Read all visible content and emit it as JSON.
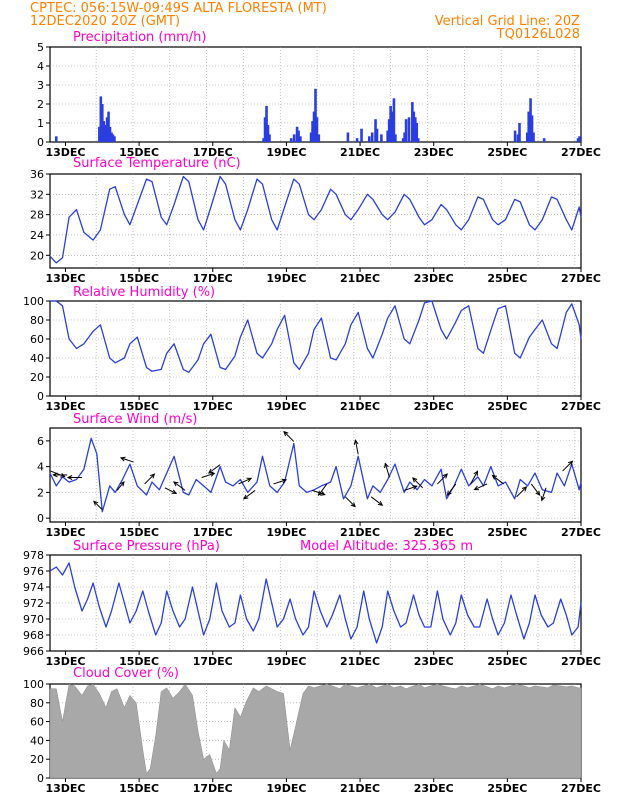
{
  "header": {
    "line1": "CPTEC:   056:15W-09:49S   ALTA FLORESTA (MT)",
    "date": "12DEC2020 20Z (GMT)",
    "grid_note": "Vertical Grid Line: 20Z",
    "code": "TQ0126L028"
  },
  "colors": {
    "header": "#ff8000",
    "title": "#ff00c8",
    "series": "#2b3fe0",
    "cloud": "#a8a8a8"
  },
  "chart_data": [
    {
      "type": "bar",
      "title": "Precipitation (mm/h)",
      "ylim": [
        0,
        5
      ],
      "yticks": [
        0,
        1,
        2,
        3,
        4,
        5
      ],
      "xticks": [
        "13DEC",
        "15DEC",
        "17DEC",
        "19DEC",
        "21DEC",
        "23DEC",
        "25DEC",
        "27DEC"
      ],
      "xrange_days": [
        12.58,
        27.0
      ],
      "x": [
        12.75,
        13.92,
        13.96,
        14.0,
        14.04,
        14.08,
        14.13,
        14.17,
        14.21,
        14.25,
        14.29,
        14.33,
        18.38,
        18.42,
        18.46,
        18.5,
        18.54,
        19.13,
        19.21,
        19.29,
        19.33,
        19.38,
        19.67,
        19.71,
        19.75,
        19.79,
        19.83,
        19.88,
        20.67,
        20.92,
        21.04,
        21.25,
        21.33,
        21.42,
        21.46,
        21.58,
        21.75,
        21.79,
        21.83,
        21.88,
        21.92,
        21.96,
        22.17,
        22.21,
        22.25,
        22.33,
        22.42,
        22.46,
        22.5,
        22.54,
        22.58,
        25.21,
        25.29,
        25.33,
        25.54,
        25.58,
        25.63,
        25.67,
        25.71,
        26.0,
        26.92,
        26.96
      ],
      "values": [
        0.3,
        0.8,
        2.4,
        2.0,
        1.1,
        0.9,
        1.3,
        1.6,
        0.8,
        0.5,
        0.4,
        0.3,
        0.2,
        1.3,
        1.9,
        0.9,
        0.4,
        0.2,
        0.4,
        0.8,
        0.6,
        0.3,
        0.5,
        1.1,
        1.6,
        2.8,
        1.3,
        0.4,
        0.5,
        0.2,
        0.7,
        0.3,
        0.5,
        1.2,
        0.7,
        0.4,
        0.6,
        1.2,
        1.9,
        1.6,
        2.3,
        0.4,
        0.2,
        0.5,
        1.2,
        1.3,
        2.1,
        1.6,
        1.3,
        1.0,
        0.2,
        0.6,
        0.4,
        1.0,
        0.5,
        1.6,
        2.3,
        1.4,
        0.5,
        0.2,
        0.2,
        0.3
      ]
    },
    {
      "type": "line",
      "title": "Surface Temperature (nC)",
      "ylim": [
        17.5,
        36
      ],
      "yticks": [
        20,
        24,
        28,
        32,
        36
      ],
      "xticks": [
        "13DEC",
        "15DEC",
        "17DEC",
        "19DEC",
        "21DEC",
        "23DEC",
        "25DEC",
        "27DEC"
      ],
      "xrange_days": [
        12.58,
        27.0
      ],
      "x": [
        12.58,
        12.75,
        12.92,
        13.1,
        13.3,
        13.5,
        13.75,
        13.95,
        14.2,
        14.35,
        14.6,
        14.75,
        14.95,
        15.2,
        15.35,
        15.6,
        15.75,
        15.95,
        16.2,
        16.35,
        16.6,
        16.75,
        16.95,
        17.2,
        17.35,
        17.6,
        17.75,
        17.95,
        18.2,
        18.35,
        18.6,
        18.75,
        18.95,
        19.2,
        19.35,
        19.6,
        19.75,
        19.95,
        20.2,
        20.35,
        20.6,
        20.75,
        20.95,
        21.2,
        21.35,
        21.6,
        21.75,
        21.95,
        22.2,
        22.35,
        22.6,
        22.75,
        22.95,
        23.2,
        23.35,
        23.6,
        23.75,
        23.95,
        24.2,
        24.35,
        24.6,
        24.75,
        24.95,
        25.2,
        25.35,
        25.6,
        25.75,
        25.95,
        26.2,
        26.35,
        26.6,
        26.75,
        26.95,
        27.0
      ],
      "values": [
        19.8,
        18.5,
        19.5,
        27.5,
        29,
        24.5,
        23,
        25,
        33,
        33.5,
        28,
        26,
        30,
        35,
        34.5,
        27.5,
        26,
        30,
        35.5,
        34.5,
        27,
        25,
        29.5,
        35.5,
        34,
        27,
        25,
        29,
        35,
        34,
        27,
        25,
        29.5,
        35,
        34,
        28,
        27,
        29,
        33,
        32,
        28,
        27,
        29,
        32,
        31,
        28,
        27,
        28.5,
        32,
        31,
        27.5,
        26,
        27,
        30,
        29,
        26,
        25,
        27,
        31.5,
        31,
        27,
        26,
        27,
        31,
        30.5,
        26,
        25,
        27,
        31.5,
        31,
        27,
        25,
        29.5,
        27.5
      ]
    },
    {
      "type": "line",
      "title": "Relative Humidity (%)",
      "ylim": [
        0,
        100
      ],
      "yticks": [
        0,
        20,
        40,
        60,
        80,
        100
      ],
      "xticks": [
        "13DEC",
        "15DEC",
        "17DEC",
        "19DEC",
        "21DEC",
        "23DEC",
        "25DEC",
        "27DEC"
      ],
      "xrange_days": [
        12.58,
        27.0
      ],
      "x": [
        12.58,
        12.75,
        12.92,
        13.1,
        13.3,
        13.5,
        13.75,
        13.95,
        14.2,
        14.35,
        14.6,
        14.75,
        14.95,
        15.2,
        15.35,
        15.6,
        15.75,
        15.95,
        16.2,
        16.35,
        16.6,
        16.75,
        16.95,
        17.2,
        17.35,
        17.6,
        17.75,
        17.95,
        18.2,
        18.35,
        18.6,
        18.75,
        18.95,
        19.2,
        19.35,
        19.6,
        19.75,
        19.95,
        20.2,
        20.35,
        20.6,
        20.75,
        20.95,
        21.2,
        21.35,
        21.6,
        21.75,
        21.95,
        22.2,
        22.35,
        22.6,
        22.75,
        22.95,
        23.2,
        23.35,
        23.6,
        23.75,
        23.95,
        24.2,
        24.35,
        24.6,
        24.75,
        24.95,
        25.2,
        25.35,
        25.6,
        25.75,
        25.95,
        26.2,
        26.35,
        26.6,
        26.75,
        26.95,
        27.0
      ],
      "values": [
        100,
        100,
        95,
        60,
        50,
        55,
        68,
        75,
        40,
        35,
        40,
        55,
        62,
        30,
        26,
        28,
        45,
        55,
        28,
        25,
        38,
        55,
        65,
        30,
        28,
        42,
        62,
        80,
        45,
        40,
        55,
        70,
        85,
        35,
        28,
        45,
        70,
        82,
        40,
        38,
        55,
        75,
        88,
        50,
        40,
        65,
        82,
        95,
        60,
        55,
        80,
        98,
        100,
        70,
        60,
        78,
        90,
        95,
        50,
        45,
        75,
        92,
        95,
        45,
        40,
        62,
        70,
        80,
        55,
        50,
        88,
        97,
        75,
        60
      ]
    },
    {
      "type": "line",
      "title": "Surface Wind (m/s)",
      "ylim": [
        -0.3,
        7
      ],
      "yticks": [
        0,
        2,
        4,
        6
      ],
      "xticks": [
        "13DEC",
        "15DEC",
        "17DEC",
        "19DEC",
        "21DEC",
        "23DEC",
        "25DEC",
        "27DEC"
      ],
      "xrange_days": [
        12.58,
        27.0
      ],
      "x": [
        12.58,
        12.75,
        12.92,
        13.1,
        13.3,
        13.5,
        13.7,
        13.85,
        14.0,
        14.2,
        14.35,
        14.55,
        14.75,
        14.95,
        15.2,
        15.35,
        15.55,
        15.75,
        15.95,
        16.2,
        16.35,
        16.55,
        16.75,
        16.95,
        17.2,
        17.35,
        17.55,
        17.75,
        17.95,
        18.2,
        18.35,
        18.55,
        18.75,
        18.95,
        19.2,
        19.35,
        19.55,
        19.75,
        19.95,
        20.2,
        20.35,
        20.55,
        20.75,
        20.95,
        21.2,
        21.35,
        21.55,
        21.75,
        21.95,
        22.2,
        22.35,
        22.55,
        22.75,
        22.95,
        23.2,
        23.35,
        23.55,
        23.75,
        23.95,
        24.2,
        24.35,
        24.55,
        24.75,
        24.95,
        25.2,
        25.35,
        25.55,
        25.75,
        25.95,
        26.2,
        26.35,
        26.55,
        26.75,
        26.95,
        27.0
      ],
      "values": [
        3.5,
        2.5,
        3.2,
        2.8,
        3.0,
        3.8,
        6.2,
        5.0,
        0.5,
        2.5,
        2.0,
        3.0,
        4.2,
        2.5,
        1.8,
        2.8,
        2.2,
        3.5,
        4.8,
        2.0,
        1.8,
        3.0,
        2.5,
        2.0,
        4.0,
        2.8,
        2.5,
        3.0,
        2.0,
        2.8,
        4.8,
        2.5,
        2.0,
        2.8,
        5.8,
        2.5,
        2.0,
        2.2,
        2.5,
        2.8,
        4.0,
        1.5,
        2.5,
        4.8,
        1.5,
        2.5,
        2.0,
        3.0,
        4.2,
        2.0,
        2.8,
        2.2,
        3.0,
        2.5,
        3.8,
        1.5,
        2.5,
        3.8,
        2.5,
        3.2,
        2.5,
        4.0,
        2.5,
        2.8,
        1.5,
        3.0,
        2.5,
        3.5,
        2.2,
        2.0,
        3.5,
        2.5,
        4.2,
        2.2,
        2.8
      ],
      "vectors": [
        {
          "x": 12.6,
          "u": 1,
          "v": -0.4
        },
        {
          "x": 13.05,
          "u": -1,
          "v": 0
        },
        {
          "x": 13.45,
          "u": -1,
          "v": 0
        },
        {
          "x": 14.0,
          "u": -0.6,
          "v": 0.6
        },
        {
          "x": 14.4,
          "u": 0.5,
          "v": 0.6
        },
        {
          "x": 14.85,
          "u": -0.9,
          "v": 0.3
        },
        {
          "x": 15.15,
          "u": 0.7,
          "v": 0.7
        },
        {
          "x": 15.7,
          "u": 0.8,
          "v": -0.4
        },
        {
          "x": 16.25,
          "u": -0.8,
          "v": 0.6
        },
        {
          "x": 16.7,
          "u": 0.9,
          "v": 0.3
        },
        {
          "x": 17.2,
          "u": -0.8,
          "v": -0.6
        },
        {
          "x": 17.7,
          "u": 0.9,
          "v": 0.4
        },
        {
          "x": 18.15,
          "u": -0.8,
          "v": -0.6
        },
        {
          "x": 18.65,
          "u": 0.9,
          "v": 0.3
        },
        {
          "x": 19.2,
          "u": -0.7,
          "v": 0.7
        },
        {
          "x": 19.7,
          "u": 0.9,
          "v": -0.3
        },
        {
          "x": 20.1,
          "u": -0.6,
          "v": -0.8
        },
        {
          "x": 20.6,
          "u": 0.7,
          "v": -0.7
        },
        {
          "x": 20.95,
          "u": -0.2,
          "v": 1
        },
        {
          "x": 21.3,
          "u": 0.8,
          "v": -0.6
        },
        {
          "x": 21.8,
          "u": -0.3,
          "v": 1
        },
        {
          "x": 22.2,
          "u": 0.9,
          "v": 0.3
        },
        {
          "x": 22.7,
          "u": -0.7,
          "v": 0.7
        },
        {
          "x": 23.1,
          "u": 0.7,
          "v": 0.7
        },
        {
          "x": 23.6,
          "u": -0.6,
          "v": -0.8
        },
        {
          "x": 24.0,
          "u": 0.5,
          "v": 0.9
        },
        {
          "x": 24.45,
          "u": -0.9,
          "v": -0.4
        },
        {
          "x": 24.9,
          "u": -0.8,
          "v": 0.6
        },
        {
          "x": 25.25,
          "u": 0.7,
          "v": 0.7
        },
        {
          "x": 25.65,
          "u": 0.6,
          "v": -0.8
        },
        {
          "x": 26.05,
          "u": -0.3,
          "v": -0.9
        },
        {
          "x": 26.5,
          "u": 0.7,
          "v": 0.7
        }
      ]
    },
    {
      "type": "line",
      "title": "Surface Pressure (hPa)",
      "subtitle": "Model Altitude: 325.365 m",
      "ylim": [
        966,
        978
      ],
      "yticks": [
        966,
        968,
        970,
        972,
        974,
        976,
        978
      ],
      "xticks": [
        "13DEC",
        "15DEC",
        "17DEC",
        "19DEC",
        "21DEC",
        "23DEC",
        "25DEC",
        "27DEC"
      ],
      "xrange_days": [
        12.58,
        27.0
      ],
      "x": [
        12.58,
        12.75,
        12.92,
        13.1,
        13.25,
        13.45,
        13.6,
        13.75,
        13.92,
        14.1,
        14.25,
        14.45,
        14.6,
        14.75,
        14.92,
        15.1,
        15.25,
        15.45,
        15.6,
        15.75,
        15.92,
        16.1,
        16.25,
        16.45,
        16.6,
        16.75,
        16.92,
        17.1,
        17.25,
        17.45,
        17.6,
        17.75,
        17.92,
        18.1,
        18.25,
        18.45,
        18.6,
        18.75,
        18.92,
        19.1,
        19.25,
        19.45,
        19.6,
        19.75,
        19.92,
        20.1,
        20.25,
        20.45,
        20.6,
        20.75,
        20.92,
        21.1,
        21.25,
        21.45,
        21.6,
        21.75,
        21.92,
        22.1,
        22.25,
        22.45,
        22.6,
        22.75,
        22.92,
        23.1,
        23.25,
        23.45,
        23.6,
        23.75,
        23.92,
        24.1,
        24.25,
        24.45,
        24.6,
        24.75,
        24.92,
        25.1,
        25.25,
        25.45,
        25.6,
        25.75,
        25.92,
        26.1,
        26.25,
        26.45,
        26.6,
        26.75,
        26.92,
        27.0
      ],
      "values": [
        976,
        976.5,
        975.5,
        977,
        974,
        971,
        972.5,
        974.5,
        971.5,
        969,
        971,
        974.5,
        972,
        969.5,
        971,
        973.5,
        971,
        968,
        969.5,
        973.5,
        971,
        969,
        970,
        974,
        971,
        968,
        970,
        974.5,
        971,
        969,
        969.5,
        973,
        970,
        968.5,
        970,
        975,
        972,
        969,
        970,
        972.5,
        970,
        968,
        969,
        973.5,
        971,
        969,
        970.5,
        973,
        970,
        967.5,
        969,
        973.5,
        970,
        967,
        969,
        973.5,
        971,
        969,
        969.5,
        973,
        970.5,
        969,
        969,
        973.5,
        970,
        968,
        969.5,
        973,
        970.5,
        969,
        969,
        972.5,
        970,
        968,
        969.5,
        973,
        970.5,
        967.5,
        969.5,
        973,
        970.5,
        969,
        969.5,
        972.5,
        970.5,
        968,
        969,
        972
      ]
    },
    {
      "type": "bar",
      "title": "Cloud Cover (%)",
      "ylim": [
        0,
        100
      ],
      "yticks": [
        0,
        20,
        40,
        60,
        80,
        100
      ],
      "xticks": [
        "13DEC",
        "15DEC",
        "17DEC",
        "19DEC",
        "21DEC",
        "23DEC",
        "25DEC",
        "27DEC"
      ],
      "xrange_days": [
        12.58,
        27.0
      ],
      "x": [
        12.58,
        12.75,
        12.92,
        13.1,
        13.25,
        13.45,
        13.6,
        13.75,
        13.92,
        14.1,
        14.25,
        14.4,
        14.6,
        14.75,
        14.92,
        15.1,
        15.2,
        15.3,
        15.45,
        15.6,
        15.75,
        15.92,
        16.1,
        16.25,
        16.45,
        16.6,
        16.75,
        16.92,
        17.1,
        17.2,
        17.3,
        17.45,
        17.6,
        17.75,
        17.92,
        18.1,
        18.25,
        18.45,
        18.6,
        18.75,
        18.92,
        19.1,
        19.25,
        19.45,
        19.6,
        19.75,
        19.92,
        20.1,
        20.25,
        20.45,
        20.6,
        20.75,
        20.92,
        21.1,
        21.25,
        21.45,
        21.6,
        21.75,
        21.92,
        22.1,
        22.25,
        22.45,
        22.6,
        22.75,
        22.92,
        23.1,
        23.25,
        23.45,
        23.6,
        23.75,
        23.92,
        24.1,
        24.25,
        24.45,
        24.6,
        24.75,
        24.92,
        25.1,
        25.25,
        25.45,
        25.6,
        25.75,
        25.92,
        26.1,
        26.25,
        26.45,
        26.6,
        26.75,
        26.92
      ],
      "values": [
        95,
        95,
        60,
        100,
        98,
        88,
        98,
        100,
        90,
        75,
        92,
        95,
        75,
        88,
        80,
        30,
        5,
        10,
        45,
        92,
        96,
        85,
        92,
        100,
        88,
        50,
        20,
        25,
        5,
        10,
        40,
        30,
        75,
        65,
        82,
        96,
        92,
        98,
        95,
        92,
        90,
        30,
        55,
        90,
        98,
        96,
        98,
        100,
        98,
        95,
        100,
        98,
        96,
        98,
        100,
        96,
        98,
        100,
        96,
        98,
        95,
        98,
        100,
        96,
        98,
        100,
        98,
        96,
        95,
        98,
        96,
        98,
        100,
        97,
        95,
        98,
        96,
        98,
        100,
        98,
        96,
        98,
        97,
        96,
        99,
        98,
        97,
        98,
        96
      ]
    }
  ]
}
